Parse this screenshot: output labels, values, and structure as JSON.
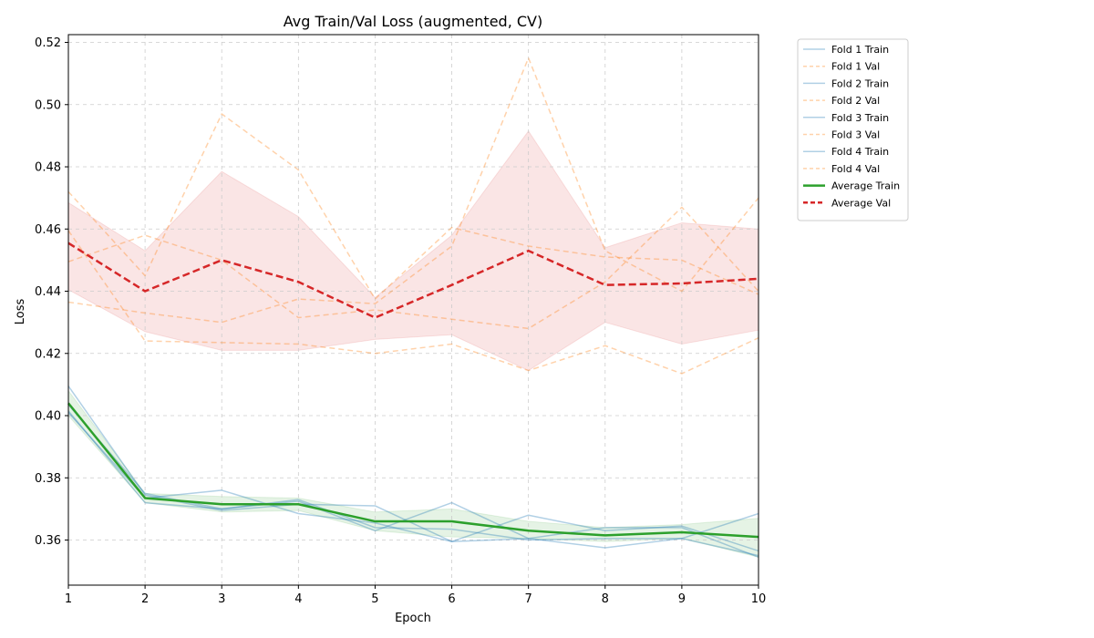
{
  "chart_data": {
    "type": "line",
    "title": "Avg Train/Val Loss (augmented, CV)",
    "xlabel": "Epoch",
    "ylabel": "Loss",
    "xlim": [
      1,
      10
    ],
    "ylim": [
      0.3455,
      0.5225
    ],
    "x": [
      1,
      2,
      3,
      4,
      5,
      6,
      7,
      8,
      9,
      10
    ],
    "xticks": [
      1,
      2,
      3,
      4,
      5,
      6,
      7,
      8,
      9,
      10
    ],
    "yticks": [
      0.36,
      0.38,
      0.4,
      0.42,
      0.44,
      0.46,
      0.48,
      0.5,
      0.52
    ],
    "ytick_labels": [
      "0.36",
      "0.38",
      "0.40",
      "0.42",
      "0.44",
      "0.46",
      "0.48",
      "0.50",
      "0.52"
    ],
    "grid": true,
    "legend_position": "outside top-right",
    "colors": {
      "fold_train": "#1f77b4",
      "fold_val": "#ff7f0e",
      "avg_train": "#2ca02c",
      "avg_val": "#d62728"
    },
    "series": [
      {
        "name": "Fold 1 Train",
        "role": "fold_train",
        "values": [
          0.4095,
          0.3745,
          0.3695,
          0.3715,
          0.371,
          0.3595,
          0.3605,
          0.364,
          0.364,
          0.3545
        ]
      },
      {
        "name": "Fold 1 Val",
        "role": "fold_val",
        "values": [
          0.472,
          0.445,
          0.497,
          0.479,
          0.4375,
          0.4605,
          0.4545,
          0.451,
          0.45,
          0.439
        ]
      },
      {
        "name": "Fold 2 Train",
        "role": "fold_train",
        "values": [
          0.4015,
          0.372,
          0.37,
          0.3725,
          0.363,
          0.372,
          0.3605,
          0.3575,
          0.3605,
          0.3685
        ]
      },
      {
        "name": "Fold 2 Val",
        "role": "fold_val",
        "values": [
          0.4365,
          0.433,
          0.43,
          0.4375,
          0.436,
          0.4545,
          0.515,
          0.453,
          0.44,
          0.47
        ]
      },
      {
        "name": "Fold 3 Train",
        "role": "fold_train",
        "values": [
          0.401,
          0.3735,
          0.376,
          0.3685,
          0.3655,
          0.3595,
          0.368,
          0.363,
          0.3645,
          0.3565
        ]
      },
      {
        "name": "Fold 3 Val",
        "role": "fold_val",
        "values": [
          0.4595,
          0.424,
          0.4235,
          0.423,
          0.42,
          0.423,
          0.4145,
          0.4225,
          0.4135,
          0.425
        ]
      },
      {
        "name": "Fold 4 Train",
        "role": "fold_train",
        "values": [
          0.4035,
          0.375,
          0.37,
          0.373,
          0.364,
          0.3635,
          0.36,
          0.3605,
          0.3605,
          0.355
        ]
      },
      {
        "name": "Fold 4 Val",
        "role": "fold_val",
        "values": [
          0.4495,
          0.458,
          0.45,
          0.4315,
          0.434,
          0.431,
          0.428,
          0.443,
          0.467,
          0.44
        ]
      },
      {
        "name": "Average Train",
        "role": "avg_train",
        "values": [
          0.404,
          0.3735,
          0.3715,
          0.3715,
          0.366,
          0.366,
          0.363,
          0.3615,
          0.3625,
          0.361
        ]
      },
      {
        "name": "Average Val",
        "role": "avg_val",
        "values": [
          0.4555,
          0.44,
          0.45,
          0.443,
          0.4315,
          0.442,
          0.453,
          0.442,
          0.4425,
          0.444
        ]
      }
    ],
    "bands": [
      {
        "role": "avg_train",
        "lower": [
          0.4,
          0.372,
          0.369,
          0.3695,
          0.363,
          0.361,
          0.3605,
          0.3595,
          0.3605,
          0.3545
        ],
        "upper": [
          0.408,
          0.375,
          0.374,
          0.3735,
          0.369,
          0.37,
          0.366,
          0.364,
          0.365,
          0.367
        ]
      },
      {
        "role": "avg_val",
        "lower": [
          0.4405,
          0.427,
          0.421,
          0.421,
          0.4245,
          0.426,
          0.4145,
          0.43,
          0.423,
          0.4275
        ],
        "upper": [
          0.4685,
          0.453,
          0.4785,
          0.464,
          0.438,
          0.458,
          0.4915,
          0.454,
          0.462,
          0.46
        ]
      }
    ]
  }
}
